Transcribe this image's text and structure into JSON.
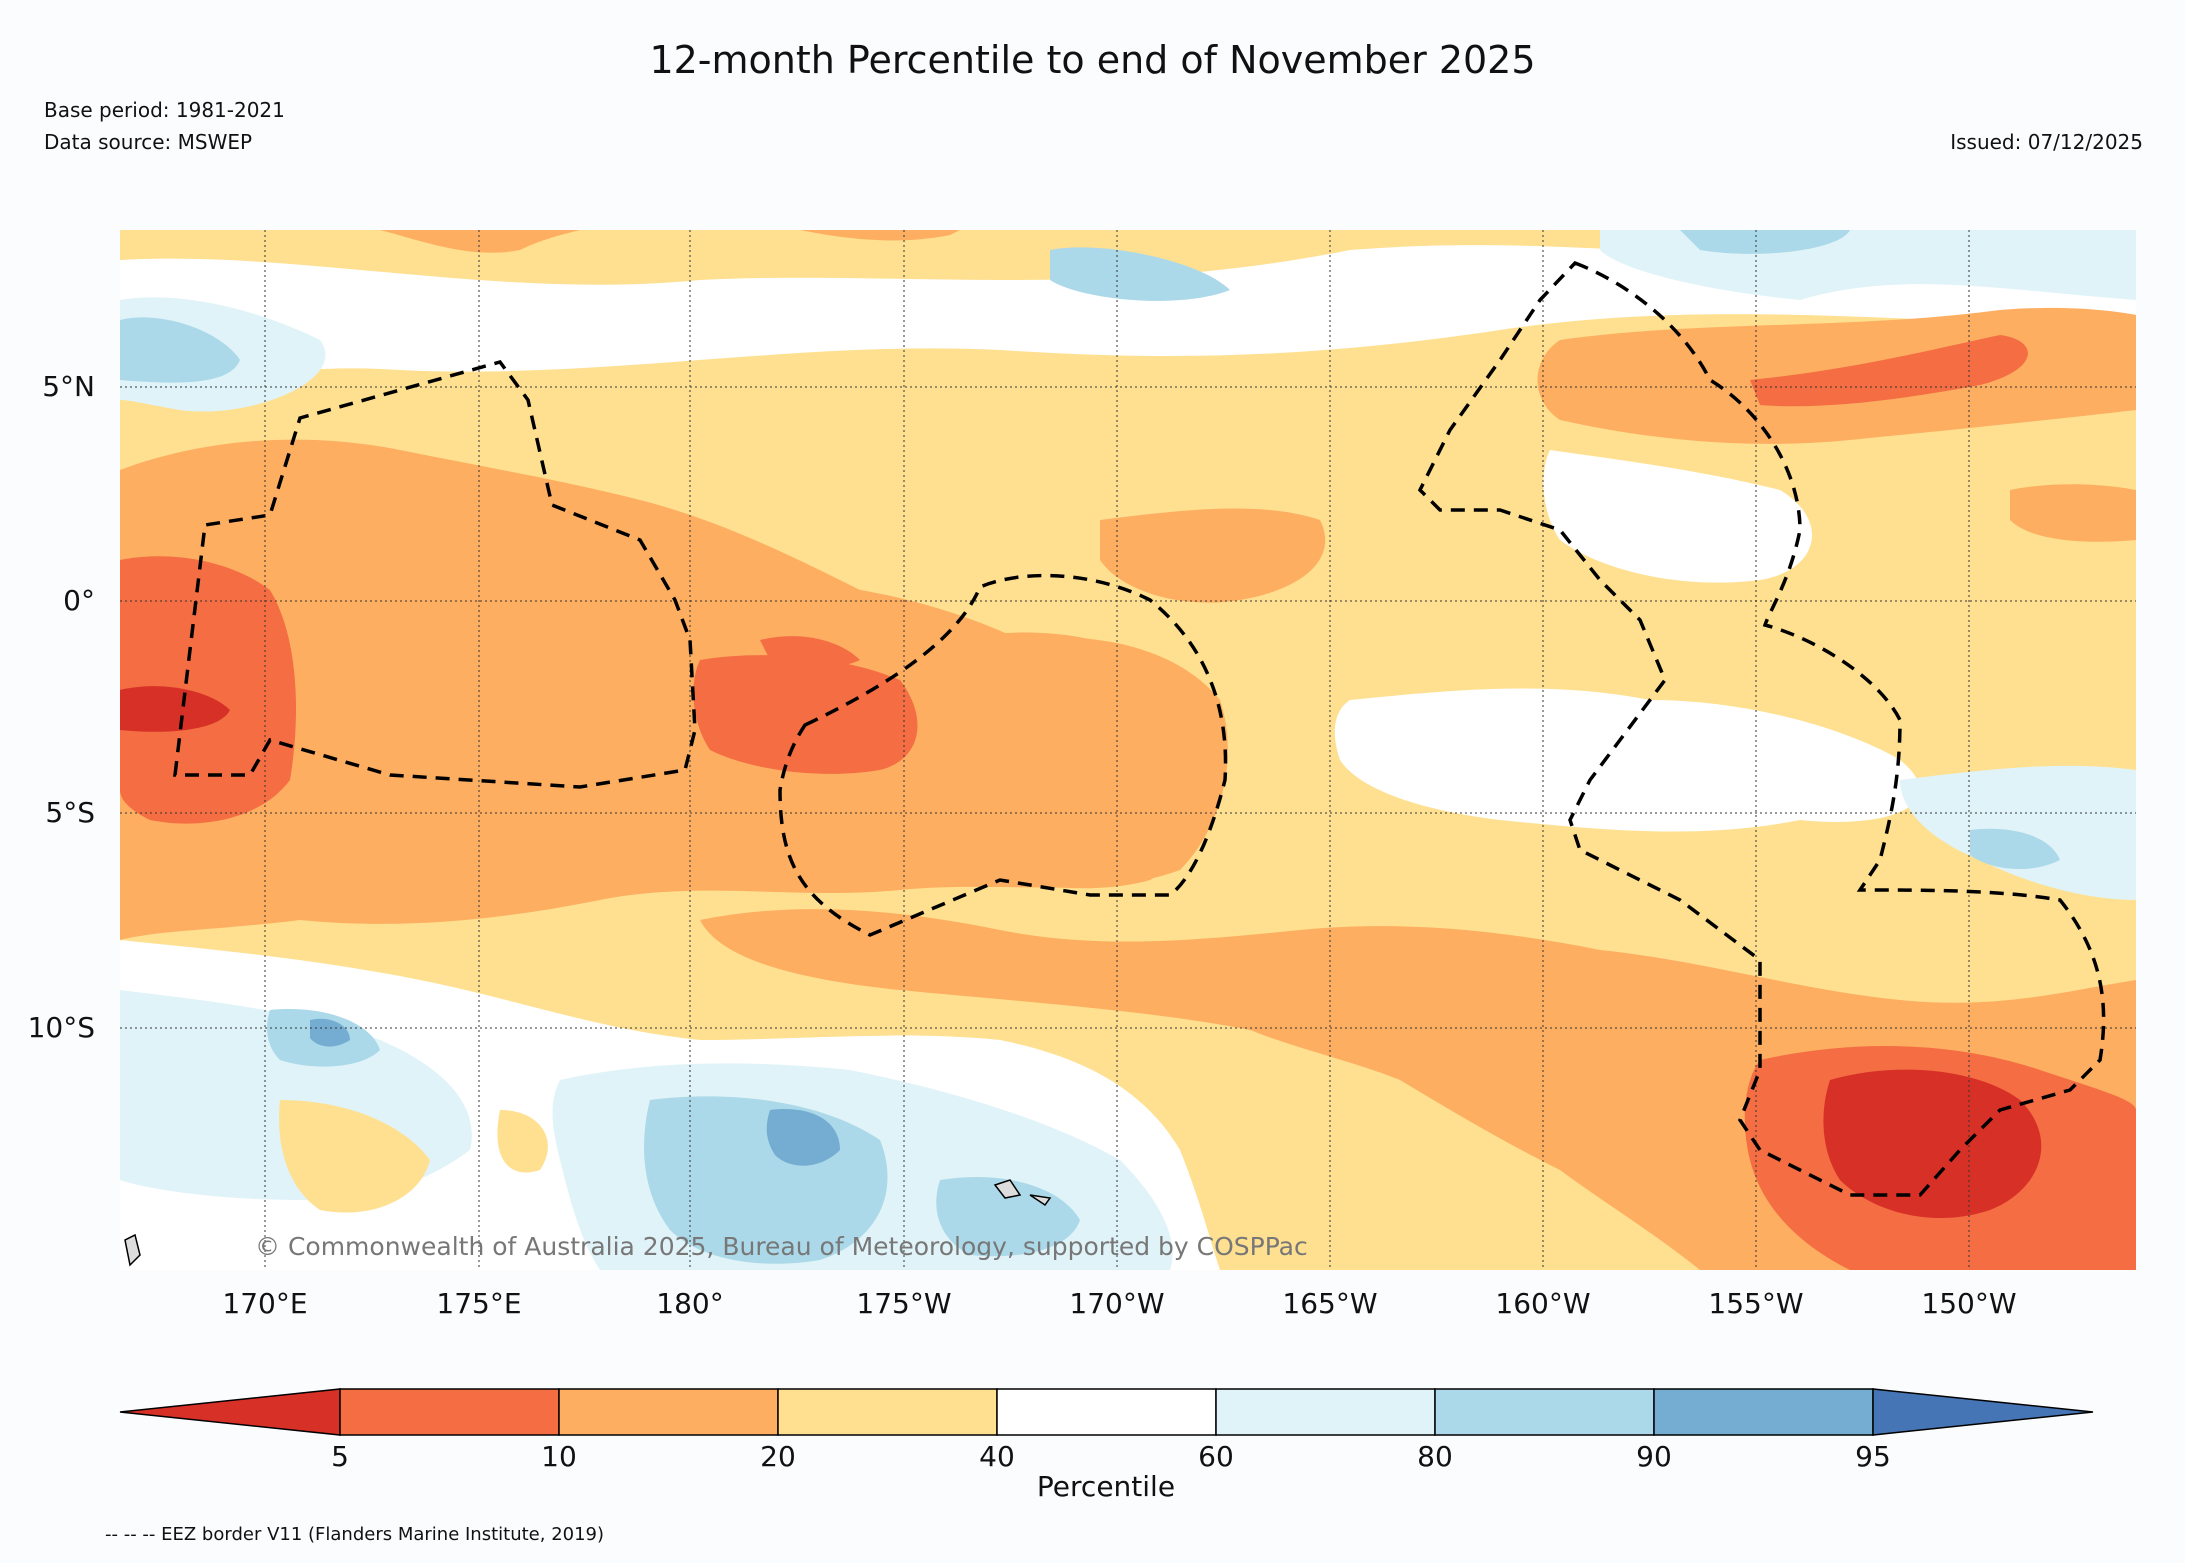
{
  "title": "12-month Percentile to end of November 2025",
  "base_period": "Base period: 1981-2021",
  "data_source": "Data source: MSWEP",
  "issued": "Issued: 07/12/2025",
  "copyright": "© Commonwealth of Australia 2025, Bureau of Meteorology, supported by COSPPac",
  "eez_note": "-- -- -- EEZ border V11 (Flanders Marine Institute, 2019)",
  "map": {
    "lon_ticks": [
      "170°E",
      "175°E",
      "180°",
      "175°W",
      "170°W",
      "165°W",
      "160°W",
      "155°W",
      "150°W"
    ],
    "lat_ticks": [
      "5°N",
      "0°",
      "5°S",
      "10°S"
    ]
  },
  "colorbar": {
    "label": "Percentile",
    "tick_labels": [
      "5",
      "10",
      "20",
      "40",
      "60",
      "80",
      "90",
      "95"
    ],
    "colors": [
      "#d73027",
      "#f46d43",
      "#fdae61",
      "#fee090",
      "#ffffff",
      "#e0f3f8",
      "#abd9e9",
      "#74add1",
      "#4575b4"
    ]
  }
}
